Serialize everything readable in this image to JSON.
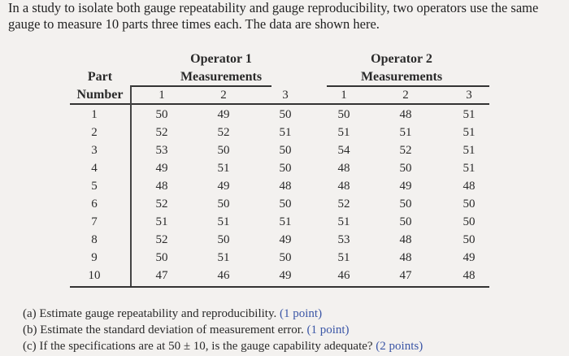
{
  "intro": "In a study to isolate both gauge repeatability and gauge reproducibility, two operators use the same gauge to measure 10 parts three times each. The data are shown here.",
  "table": {
    "part_header_1": "Part",
    "part_header_2": "Number",
    "op1_title_1": "Operator 1",
    "op1_title_2": "Measurements",
    "op2_title_1": "Operator 2",
    "op2_title_2": "Measurements",
    "sub_headers": [
      "1",
      "2",
      "3",
      "1",
      "2",
      "3"
    ],
    "rows": [
      [
        "1",
        "50",
        "49",
        "50",
        "50",
        "48",
        "51"
      ],
      [
        "2",
        "52",
        "52",
        "51",
        "51",
        "51",
        "51"
      ],
      [
        "3",
        "53",
        "50",
        "50",
        "54",
        "52",
        "51"
      ],
      [
        "4",
        "49",
        "51",
        "50",
        "48",
        "50",
        "51"
      ],
      [
        "5",
        "48",
        "49",
        "48",
        "48",
        "49",
        "48"
      ],
      [
        "6",
        "52",
        "50",
        "50",
        "52",
        "50",
        "50"
      ],
      [
        "7",
        "51",
        "51",
        "51",
        "51",
        "50",
        "50"
      ],
      [
        "8",
        "52",
        "50",
        "49",
        "53",
        "48",
        "50"
      ],
      [
        "9",
        "50",
        "51",
        "50",
        "51",
        "48",
        "49"
      ],
      [
        "10",
        "47",
        "46",
        "49",
        "46",
        "47",
        "48"
      ]
    ]
  },
  "questions": [
    {
      "text": "(a) Estimate gauge repeatability and reproducibility.",
      "points": "(1 point)"
    },
    {
      "text": "(b) Estimate the standard deviation of measurement error.",
      "points": "(1 point)"
    },
    {
      "text": "(c) If the specifications are at 50 ± 10, is the gauge capability adequate?",
      "points": "(2 points)"
    }
  ]
}
